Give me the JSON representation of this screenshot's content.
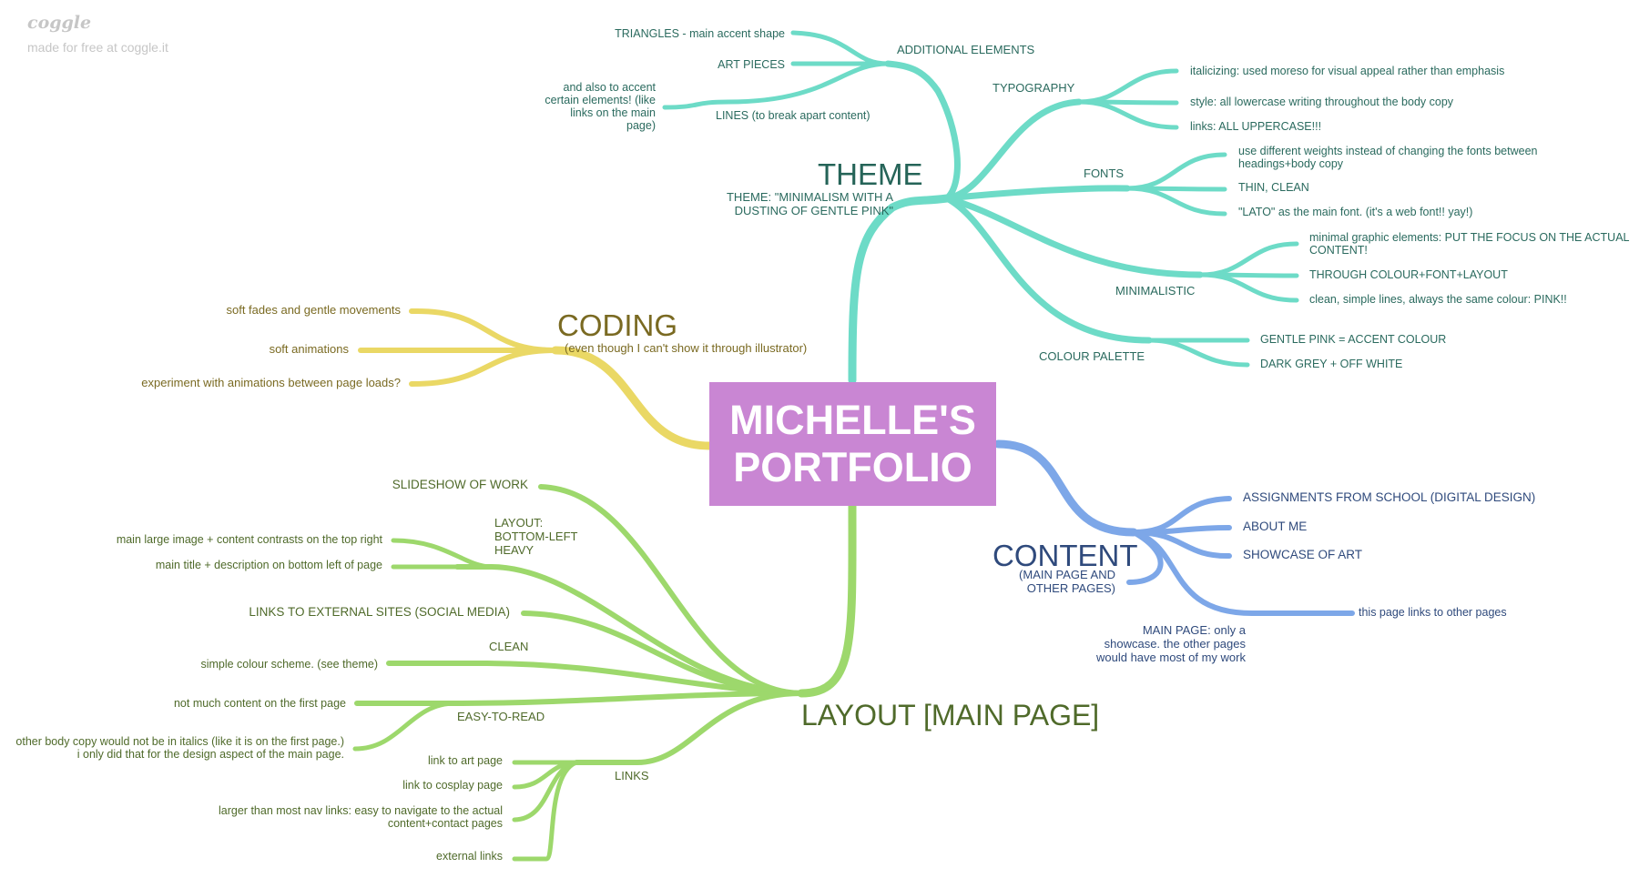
{
  "watermark": {
    "logo": "coggle",
    "subtitle": "made for free at coggle.it"
  },
  "colors": {
    "teal": "#6ddbc7",
    "blue": "#7da7e8",
    "yellow": "#ead865",
    "green": "#9dd86c",
    "root": "#c986d3"
  },
  "root": {
    "title": "MICHELLE'S\nPORTFOLIO"
  },
  "theme": {
    "title": "THEME",
    "subtitle": "THEME: \"MINIMALISM WITH A\nDUSTING OF GENTLE PINK\"",
    "additional": {
      "label": "ADDITIONAL ELEMENTS",
      "items": [
        "TRIANGLES - main accent shape",
        "ART PIECES",
        "LINES (to break apart content)"
      ],
      "lines_note": "and also to accent\ncertain elements! (like\nlinks on the main\npage)"
    },
    "typography": {
      "label": "TYPOGRAPHY",
      "items": [
        "italicizing: used moreso for visual appeal rather than emphasis",
        "style: all lowercase writing throughout the body copy",
        "links: ALL UPPERCASE!!!"
      ]
    },
    "fonts": {
      "label": "FONTS",
      "items": [
        "use different weights instead of changing the fonts between\nheadings+body copy",
        "THIN, CLEAN",
        "\"LATO\" as the main font. (it's a web font!! yay!)"
      ]
    },
    "minimalistic": {
      "label": "MINIMALISTIC",
      "items": [
        "minimal graphic elements: PUT THE FOCUS ON THE ACTUAL\nCONTENT!",
        "THROUGH COLOUR+FONT+LAYOUT",
        "clean, simple lines, always the same colour: PINK!!"
      ]
    },
    "palette": {
      "label": "COLOUR PALETTE",
      "items": [
        "GENTLE PINK = ACCENT COLOUR",
        "DARK GREY + OFF WHITE"
      ]
    }
  },
  "content": {
    "title": "CONTENT",
    "subtitle": "(MAIN PAGE AND\nOTHER PAGES)",
    "items": [
      "ASSIGNMENTS FROM SCHOOL (DIGITAL DESIGN)",
      "ABOUT ME",
      "SHOWCASE OF ART"
    ],
    "main_page": {
      "label": "MAIN PAGE: only a\nshowcase. the other pages\nwould have most of my work",
      "child": "this page links to other pages"
    }
  },
  "coding": {
    "title": "CODING",
    "subtitle": "(even though I can't show it through illustrator)",
    "items": [
      "soft fades and gentle movements",
      "soft animations",
      "experiment with animations between page loads?"
    ]
  },
  "layout": {
    "title": "LAYOUT [MAIN PAGE]",
    "slideshow": "SLIDESHOW OF WORK",
    "bottom_left": {
      "label": "LAYOUT:\nBOTTOM-LEFT\nHEAVY",
      "items": [
        "main large image + content contrasts on the top right",
        "main title + description on bottom left of page"
      ]
    },
    "external": "LINKS TO EXTERNAL SITES (SOCIAL MEDIA)",
    "clean": {
      "label": "CLEAN",
      "items": [
        "simple colour scheme. (see theme)"
      ]
    },
    "easy": {
      "label": "EASY-TO-READ",
      "items": [
        "not much content on the first page",
        "other body copy would not be in italics (like it is on the first page.)\ni only did that for the design aspect of the main page."
      ]
    },
    "links": {
      "label": "LINKS",
      "items": [
        "link to art page",
        "link to cosplay page",
        "larger than most nav links: easy to navigate to the actual\ncontent+contact pages",
        "external links"
      ]
    }
  }
}
